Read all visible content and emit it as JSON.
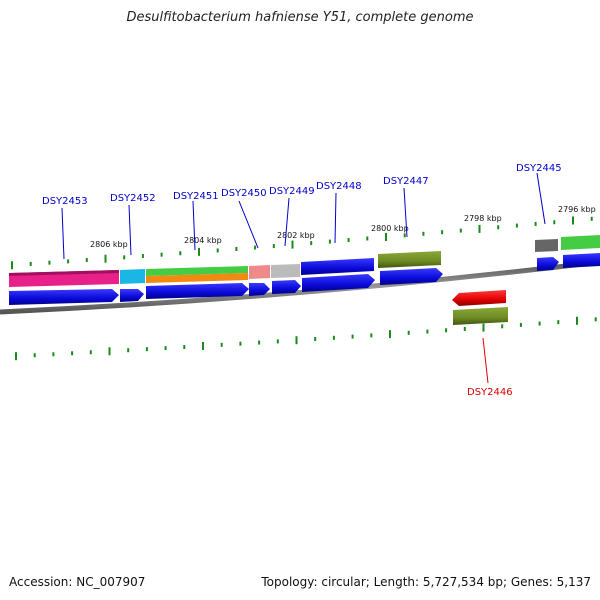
{
  "header": {
    "title": "Desulfitobacterium hafniense Y51, complete genome"
  },
  "footer": {
    "accession": "Accession: NC_007907",
    "summary": "Topology: circular; Length: 5,727,534 bp; Genes: 5,137"
  },
  "scale": {
    "labels": [
      "2806 kbp",
      "2804 kbp",
      "2802 kbp",
      "2800 kbp",
      "2798 kbp",
      "2796 kbp"
    ]
  },
  "genes": [
    {
      "id": "DSY2453",
      "color": "#0000cc"
    },
    {
      "id": "DSY2452",
      "color": "#0000cc"
    },
    {
      "id": "DSY2451",
      "color": "#0000cc"
    },
    {
      "id": "DSY2450",
      "color": "#0000cc"
    },
    {
      "id": "DSY2449",
      "color": "#0000cc"
    },
    {
      "id": "DSY2448",
      "color": "#0000cc"
    },
    {
      "id": "DSY2447",
      "color": "#0000cc"
    },
    {
      "id": "DSY2446",
      "color": "#dd0000"
    },
    {
      "id": "DSY2445",
      "color": "#0000cc"
    }
  ],
  "colors": {
    "backbone": "#777777",
    "cds_forward": "#1010e0",
    "cds_reverse": "#ee0000",
    "tick": "#1a8a1a",
    "magenta": "#e8208a",
    "cyan": "#19b6e6",
    "green": "#44cc44",
    "orange": "#f08a10",
    "pink": "#f08a8a",
    "lightgray": "#bbbbbb",
    "olive": "#6e8a22",
    "darkgray": "#666666"
  }
}
